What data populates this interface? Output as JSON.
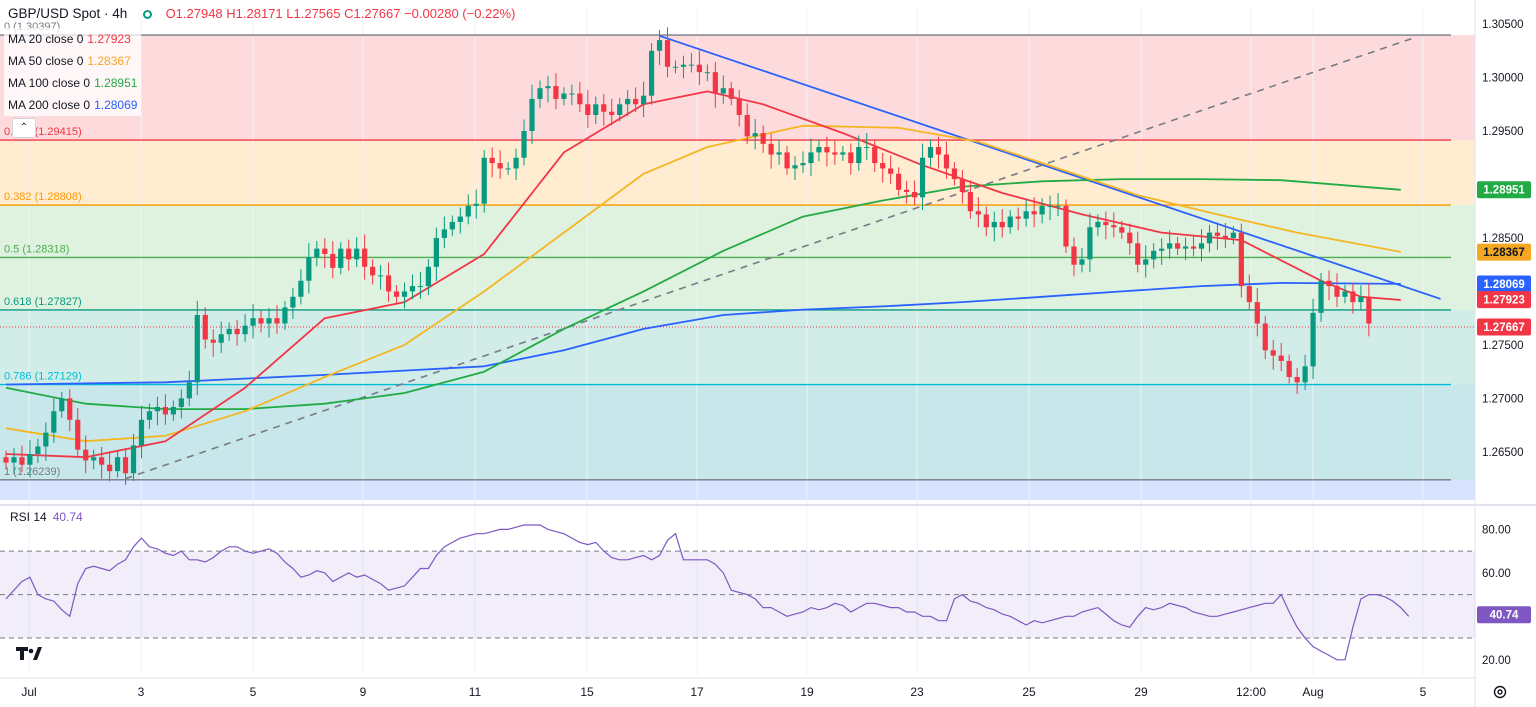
{
  "header": {
    "symbol": "GBP/USD Spot · 4h",
    "ohlc": "O1.27948  H1.28171  L1.27565  C1.27667  −0.00280 (−0.22%)"
  },
  "indicators": [
    {
      "name": "MA 20 close 0",
      "value": "1.27923",
      "color": "#f23645"
    },
    {
      "name": "MA 50 close 0",
      "value": "1.28367",
      "color": "#f5a623"
    },
    {
      "name": "MA 100 close 0",
      "value": "1.28951",
      "color": "#22ab45"
    },
    {
      "name": "MA 200 close 0",
      "value": "1.28069",
      "color": "#2962ff"
    }
  ],
  "rsi": {
    "name": "RSI 14",
    "value": "40.74",
    "color": "#7e57c2"
  },
  "colors": {
    "up": "#089981",
    "down": "#f23645",
    "grid": "#f0f3fa"
  },
  "chart_data": {
    "type": "candlestick",
    "price_axis": {
      "range": [
        1.2605,
        1.3065
      ],
      "ticks": [
        "1.30500",
        "1.30000",
        "1.29500",
        "1.28500",
        "1.27500",
        "1.27000",
        "1.26500"
      ]
    },
    "rsi_axis": {
      "range": [
        13,
        88
      ],
      "ticks": [
        "80.00",
        "60.00",
        "20.00"
      ],
      "bands": [
        30,
        50,
        70
      ]
    },
    "time_axis": [
      "Jul",
      "3",
      "5",
      "9",
      "11",
      "15",
      "17",
      "19",
      "23",
      "25",
      "29",
      "12:00",
      "Aug",
      "5"
    ],
    "fibonacci": [
      {
        "level": "0",
        "price": 1.30397,
        "label": "0 (1.30397)",
        "color": "#787b86"
      },
      {
        "level": "0.236",
        "price": 1.29415,
        "label": "0.236 (1.29415)",
        "color": "#f23645"
      },
      {
        "level": "0.382",
        "price": 1.28808,
        "label": "0.382 (1.28808)",
        "color": "#ff9800"
      },
      {
        "level": "0.5",
        "price": 1.28318,
        "label": "0.5 (1.28318)",
        "color": "#4caf50"
      },
      {
        "level": "0.618",
        "price": 1.27827,
        "label": "0.618 (1.27827)",
        "color": "#089981"
      },
      {
        "level": "0.786",
        "price": 1.27129,
        "label": "0.786 (1.27129)",
        "color": "#00bcd4"
      },
      {
        "level": "1",
        "price": 1.26239,
        "label": "1 (1.26239)",
        "color": "#787b86"
      }
    ],
    "price_labels": [
      {
        "text": "1.28951",
        "price": 1.28951,
        "bg": "#22ab45",
        "fg": "#ffffff"
      },
      {
        "text": "1.28367",
        "price": 1.28367,
        "bg": "#f5a623",
        "fg": "#131722"
      },
      {
        "text": "1.28069",
        "price": 1.28069,
        "bg": "#2962ff",
        "fg": "#ffffff"
      },
      {
        "text": "1.27923",
        "price": 1.27923,
        "bg": "#f23645",
        "fg": "#ffffff"
      },
      {
        "text": "1.27667",
        "price": 1.27667,
        "bg": "#f23645",
        "fg": "#ffffff"
      },
      {
        "text": "40.74",
        "rsi": 40.74,
        "bg": "#7e57c2",
        "fg": "#ffffff"
      }
    ],
    "last_price": 1.27667,
    "candles_close": [
      1.264,
      1.2645,
      1.2638,
      1.2648,
      1.2655,
      1.2668,
      1.2688,
      1.27,
      1.268,
      1.2652,
      1.2642,
      1.2645,
      1.2638,
      1.2632,
      1.2645,
      1.263,
      1.2656,
      1.268,
      1.2688,
      1.2692,
      1.2685,
      1.2692,
      1.27,
      1.2715,
      1.2778,
      1.2755,
      1.2752,
      1.276,
      1.2765,
      1.276,
      1.2768,
      1.2775,
      1.277,
      1.2775,
      1.277,
      1.2785,
      1.2795,
      1.281,
      1.2832,
      1.284,
      1.2835,
      1.2822,
      1.284,
      1.283,
      1.284,
      1.2823,
      1.2815,
      1.2815,
      1.28,
      1.2795,
      1.28,
      1.2805,
      1.2805,
      1.2823,
      1.285,
      1.2858,
      1.2865,
      1.287,
      1.288,
      1.2882,
      1.2925,
      1.292,
      1.2915,
      1.2915,
      1.2925,
      1.295,
      1.298,
      1.299,
      1.2992,
      1.298,
      1.2985,
      1.2985,
      1.2975,
      1.2965,
      1.2975,
      1.2968,
      1.2965,
      1.2975,
      1.298,
      1.2975,
      1.2983,
      1.3025,
      1.3035,
      1.301,
      1.301,
      1.3012,
      1.3012,
      1.3005,
      1.3005,
      1.2985,
      1.299,
      1.298,
      1.2965,
      1.2945,
      1.2948,
      1.2938,
      1.2928,
      1.293,
      1.2915,
      1.2918,
      1.292,
      1.293,
      1.2935,
      1.293,
      1.2928,
      1.293,
      1.292,
      1.2935,
      1.2935,
      1.292,
      1.2915,
      1.291,
      1.2895,
      1.2893,
      1.2888,
      1.2925,
      1.2935,
      1.2928,
      1.2915,
      1.2905,
      1.2893,
      1.2875,
      1.2872,
      1.286,
      1.2865,
      1.286,
      1.287,
      1.2868,
      1.2875,
      1.2872,
      1.288,
      1.288,
      1.288,
      1.2842,
      1.2825,
      1.283,
      1.286,
      1.2865,
      1.2862,
      1.286,
      1.2855,
      1.2845,
      1.2825,
      1.283,
      1.2838,
      1.284,
      1.2845,
      1.284,
      1.2842,
      1.284,
      1.2845,
      1.2855,
      1.2852,
      1.285,
      1.2855,
      1.2805,
      1.279,
      1.277,
      1.2745,
      1.274,
      1.2735,
      1.272,
      1.2715,
      1.273,
      1.278,
      1.281,
      1.2805,
      1.2795,
      1.28,
      1.279,
      1.2795,
      1.277
    ],
    "candles_open_first": 1.2645,
    "ma20": [
      [
        0,
        1.2648
      ],
      [
        10,
        1.2645
      ],
      [
        20,
        1.266
      ],
      [
        30,
        1.271
      ],
      [
        40,
        1.2775
      ],
      [
        50,
        1.279
      ],
      [
        60,
        1.2835
      ],
      [
        70,
        1.293
      ],
      [
        80,
        1.2975
      ],
      [
        88,
        1.2987
      ],
      [
        95,
        1.2975
      ],
      [
        105,
        1.2948
      ],
      [
        115,
        1.2918
      ],
      [
        125,
        1.2892
      ],
      [
        135,
        1.2872
      ],
      [
        145,
        1.2855
      ],
      [
        155,
        1.2848
      ],
      [
        165,
        1.281
      ],
      [
        170,
        1.2795
      ],
      [
        175,
        1.2792
      ]
    ],
    "ma50": [
      [
        0,
        1.2672
      ],
      [
        10,
        1.266
      ],
      [
        20,
        1.2665
      ],
      [
        30,
        1.2688
      ],
      [
        40,
        1.272
      ],
      [
        50,
        1.275
      ],
      [
        60,
        1.28
      ],
      [
        70,
        1.2855
      ],
      [
        80,
        1.291
      ],
      [
        88,
        1.2935
      ],
      [
        100,
        1.2955
      ],
      [
        112,
        1.2953
      ],
      [
        122,
        1.294
      ],
      [
        132,
        1.2915
      ],
      [
        142,
        1.289
      ],
      [
        152,
        1.2872
      ],
      [
        162,
        1.2855
      ],
      [
        175,
        1.2837
      ]
    ],
    "ma100": [
      [
        0,
        1.271
      ],
      [
        10,
        1.2695
      ],
      [
        20,
        1.269
      ],
      [
        30,
        1.269
      ],
      [
        40,
        1.2695
      ],
      [
        50,
        1.2705
      ],
      [
        60,
        1.2725
      ],
      [
        70,
        1.2765
      ],
      [
        80,
        1.28
      ],
      [
        90,
        1.2838
      ],
      [
        100,
        1.287
      ],
      [
        110,
        1.2885
      ],
      [
        120,
        1.2898
      ],
      [
        130,
        1.2903
      ],
      [
        140,
        1.2905
      ],
      [
        150,
        1.2905
      ],
      [
        160,
        1.2904
      ],
      [
        175,
        1.2895
      ]
    ],
    "ma200": [
      [
        0,
        1.2713
      ],
      [
        20,
        1.2715
      ],
      [
        40,
        1.2722
      ],
      [
        60,
        1.273
      ],
      [
        70,
        1.2745
      ],
      [
        80,
        1.2765
      ],
      [
        90,
        1.2778
      ],
      [
        100,
        1.2783
      ],
      [
        110,
        1.2786
      ],
      [
        120,
        1.279
      ],
      [
        130,
        1.2795
      ],
      [
        140,
        1.28
      ],
      [
        150,
        1.2805
      ],
      [
        160,
        1.2808
      ],
      [
        175,
        1.2807
      ]
    ],
    "trendlines": [
      {
        "style": "solid",
        "color": "#2962ff",
        "from": [
          82,
          1.3039
        ],
        "to": [
          180,
          1.2793
        ]
      },
      {
        "style": "dashed",
        "color": "#787b86",
        "from": [
          15,
          1.2625
        ],
        "to": [
          177,
          1.3038
        ]
      }
    ],
    "rsi_values": [
      48,
      52,
      56,
      58,
      50,
      48,
      47,
      43,
      40,
      55,
      62,
      63,
      62,
      61,
      64,
      66,
      72,
      76,
      72,
      71,
      69,
      68,
      70,
      66,
      66,
      65,
      67,
      70,
      72,
      72,
      70,
      69,
      70,
      71,
      69,
      65,
      62,
      58,
      59,
      61,
      60,
      56,
      58,
      60,
      58,
      59,
      57,
      55,
      52,
      53,
      54,
      58,
      62,
      62,
      68,
      72,
      74,
      76,
      77,
      78,
      78,
      79,
      80,
      80,
      81,
      82,
      82,
      82,
      80,
      79,
      78,
      76,
      74,
      73,
      74,
      70,
      67,
      66,
      66,
      67,
      68,
      66,
      68,
      75,
      78,
      66,
      66,
      66,
      66,
      64,
      60,
      52,
      51,
      50,
      48,
      44,
      44,
      42,
      40,
      41,
      42,
      44,
      43,
      44,
      46,
      45,
      42,
      44,
      46,
      46,
      45,
      44,
      44,
      42,
      42,
      40,
      40,
      38,
      38,
      48,
      50,
      47,
      46,
      44,
      43,
      41,
      40,
      38,
      36,
      38,
      37,
      38,
      39,
      40,
      40,
      42,
      43,
      44,
      41,
      38,
      36,
      35,
      40,
      44,
      43,
      44,
      46,
      45,
      44,
      42,
      41,
      40,
      40,
      41,
      42,
      43,
      44,
      45,
      46,
      46,
      50,
      42,
      35,
      30,
      26,
      24,
      22,
      20,
      20,
      35,
      48,
      50,
      50,
      49,
      47,
      44,
      40
    ]
  }
}
